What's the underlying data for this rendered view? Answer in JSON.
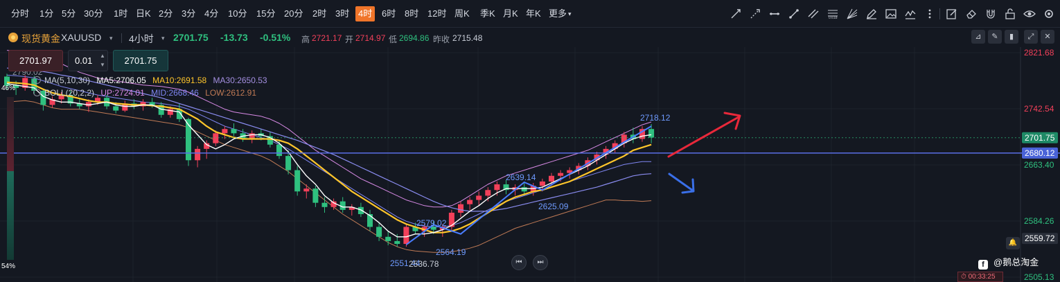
{
  "toolbar": {
    "timeframes": [
      "分时",
      "1分",
      "5分",
      "30分",
      "1时",
      "日K",
      "2分",
      "3分",
      "4分",
      "10分",
      "15分",
      "20分",
      "2时",
      "3时",
      "4时",
      "6时",
      "8时",
      "12时",
      "周K",
      "季K",
      "月K",
      "年K",
      "更多"
    ],
    "active_timeframe": "4时",
    "more_caret": "▾"
  },
  "drawing_tools": [
    "trend-line-icon",
    "ray-line-icon",
    "horizontal-line-icon",
    "segment-icon",
    "parallel-channel-icon",
    "fibonacci-icon",
    "fan-icon",
    "pencil-icon",
    "image-icon",
    "wave-icon",
    "more-dots-icon",
    "edit-icon",
    "eraser-icon",
    "magnet-icon",
    "lock-icon",
    "eye-icon",
    "settings-icon"
  ],
  "symbol": {
    "name_cn": "现货黄金",
    "code": "XAUUSD",
    "caret": "▾",
    "interval": "4小时",
    "price": "2701.75",
    "change": "-13.73",
    "change_pct": "-0.51%",
    "high_label": "高",
    "high": "2721.17",
    "open_label": "开",
    "open": "2714.97",
    "low_label": "低",
    "low": "2694.86",
    "prev_label": "昨收",
    "prev": "2715.48"
  },
  "order": {
    "sell": "2701.97",
    "qty": "0.01",
    "buy": "2701.75"
  },
  "legend": {
    "ma_label": "MA(5,10,30)",
    "ma5": "MA5:2706.05",
    "ma10": "MA10:2691.58",
    "ma30": "MA30:2650.53",
    "boll_label": "BOLL(20,2,2)",
    "up": "UP:2724.01",
    "mid": "MID:2668.46",
    "low": "LOW:2612.91"
  },
  "sentiment": {
    "top": "46%",
    "bottom": "54%"
  },
  "footer": {
    "watermark": "@鹅总淘金",
    "countdown": "00:33:25"
  },
  "colors": {
    "up": "#f2405a",
    "down": "#2fc07f",
    "ma5": "#ffffff",
    "ma10": "#ffc62b",
    "ma30": "#8a8cf0",
    "boll_up": "#d88ae6",
    "boll_mid": "#7f86f2",
    "boll_low": "#c07a55",
    "accent": "#f0752a"
  },
  "chart_data": {
    "type": "candlestick",
    "price_axis": [
      2821.68,
      2742.54,
      2663.4,
      2584.26,
      2505.13
    ],
    "axis_tags": {
      "current": "2701.75",
      "hline": "2680.12",
      "alert": "2559.72"
    },
    "annotations": [
      "2790.02",
      "2718.12",
      "2639.14",
      "2625.09",
      "2579.02",
      "2564.19",
      "2551.44",
      "2536.78"
    ],
    "ohlc": [
      [
        2788,
        2792,
        2770,
        2775
      ],
      [
        2776,
        2782,
        2762,
        2772
      ],
      [
        2772,
        2790,
        2768,
        2786
      ],
      [
        2785,
        2789,
        2764,
        2768
      ],
      [
        2768,
        2771,
        2740,
        2748
      ],
      [
        2748,
        2760,
        2744,
        2756
      ],
      [
        2756,
        2766,
        2750,
        2762
      ],
      [
        2762,
        2768,
        2746,
        2750
      ],
      [
        2750,
        2758,
        2742,
        2746
      ],
      [
        2746,
        2756,
        2738,
        2752
      ],
      [
        2752,
        2762,
        2748,
        2758
      ],
      [
        2758,
        2762,
        2742,
        2746
      ],
      [
        2746,
        2752,
        2736,
        2740
      ],
      [
        2740,
        2754,
        2738,
        2750
      ],
      [
        2750,
        2756,
        2742,
        2746
      ],
      [
        2746,
        2756,
        2740,
        2752
      ],
      [
        2752,
        2758,
        2744,
        2748
      ],
      [
        2748,
        2752,
        2730,
        2734
      ],
      [
        2734,
        2746,
        2730,
        2742
      ],
      [
        2742,
        2750,
        2724,
        2728
      ],
      [
        2728,
        2730,
        2662,
        2670
      ],
      [
        2670,
        2690,
        2660,
        2686
      ],
      [
        2686,
        2698,
        2672,
        2694
      ],
      [
        2694,
        2712,
        2690,
        2708
      ],
      [
        2708,
        2718,
        2700,
        2714
      ],
      [
        2714,
        2722,
        2704,
        2708
      ],
      [
        2708,
        2714,
        2696,
        2700
      ],
      [
        2700,
        2712,
        2694,
        2708
      ],
      [
        2708,
        2714,
        2698,
        2704
      ],
      [
        2704,
        2710,
        2688,
        2692
      ],
      [
        2692,
        2698,
        2672,
        2676
      ],
      [
        2676,
        2684,
        2650,
        2656
      ],
      [
        2656,
        2662,
        2620,
        2626
      ],
      [
        2626,
        2636,
        2616,
        2630
      ],
      [
        2630,
        2634,
        2604,
        2610
      ],
      [
        2610,
        2618,
        2596,
        2604
      ],
      [
        2604,
        2616,
        2600,
        2612
      ],
      [
        2612,
        2618,
        2596,
        2600
      ],
      [
        2600,
        2608,
        2592,
        2604
      ],
      [
        2604,
        2610,
        2590,
        2594
      ],
      [
        2594,
        2600,
        2570,
        2576
      ],
      [
        2576,
        2582,
        2556,
        2562
      ],
      [
        2562,
        2570,
        2550,
        2556
      ],
      [
        2556,
        2566,
        2548,
        2552
      ],
      [
        2552,
        2580,
        2548,
        2576
      ],
      [
        2576,
        2582,
        2566,
        2570
      ],
      [
        2570,
        2580,
        2562,
        2576
      ],
      [
        2576,
        2584,
        2566,
        2572
      ],
      [
        2572,
        2580,
        2562,
        2576
      ],
      [
        2576,
        2600,
        2570,
        2596
      ],
      [
        2596,
        2612,
        2590,
        2608
      ],
      [
        2608,
        2618,
        2600,
        2614
      ],
      [
        2614,
        2626,
        2606,
        2620
      ],
      [
        2620,
        2632,
        2612,
        2628
      ],
      [
        2628,
        2640,
        2620,
        2636
      ],
      [
        2636,
        2642,
        2622,
        2628
      ],
      [
        2628,
        2636,
        2620,
        2632
      ],
      [
        2632,
        2638,
        2620,
        2626
      ],
      [
        2626,
        2638,
        2620,
        2634
      ],
      [
        2634,
        2644,
        2626,
        2640
      ],
      [
        2640,
        2652,
        2634,
        2648
      ],
      [
        2648,
        2656,
        2640,
        2652
      ],
      [
        2652,
        2660,
        2644,
        2656
      ],
      [
        2656,
        2666,
        2650,
        2662
      ],
      [
        2662,
        2674,
        2656,
        2670
      ],
      [
        2670,
        2682,
        2664,
        2678
      ],
      [
        2678,
        2690,
        2672,
        2686
      ],
      [
        2686,
        2698,
        2680,
        2694
      ],
      [
        2694,
        2710,
        2688,
        2706
      ],
      [
        2706,
        2716,
        2694,
        2700
      ],
      [
        2700,
        2718,
        2696,
        2714
      ],
      [
        2714,
        2721,
        2694,
        2702
      ]
    ],
    "ma5": [
      2778,
      2776,
      2774,
      2772,
      2760,
      2755,
      2752,
      2752,
      2750,
      2748,
      2750,
      2752,
      2748,
      2746,
      2746,
      2748,
      2748,
      2742,
      2740,
      2738,
      2720,
      2706,
      2692,
      2686,
      2692,
      2700,
      2704,
      2706,
      2706,
      2702,
      2694,
      2682,
      2664,
      2648,
      2636,
      2620,
      2610,
      2604,
      2604,
      2600,
      2592,
      2582,
      2570,
      2562,
      2562,
      2566,
      2566,
      2568,
      2572,
      2578,
      2588,
      2598,
      2606,
      2616,
      2624,
      2630,
      2630,
      2630,
      2630,
      2632,
      2638,
      2644,
      2650,
      2656,
      2662,
      2670,
      2678,
      2686,
      2694,
      2700,
      2704,
      2706
    ],
    "ma10": [
      2780,
      2779,
      2778,
      2776,
      2770,
      2765,
      2762,
      2760,
      2757,
      2754,
      2752,
      2752,
      2750,
      2749,
      2748,
      2748,
      2747,
      2746,
      2744,
      2742,
      2735,
      2728,
      2718,
      2710,
      2706,
      2702,
      2700,
      2700,
      2700,
      2700,
      2698,
      2694,
      2686,
      2676,
      2666,
      2656,
      2646,
      2636,
      2626,
      2618,
      2610,
      2602,
      2594,
      2586,
      2580,
      2576,
      2572,
      2568,
      2568,
      2570,
      2574,
      2580,
      2588,
      2596,
      2604,
      2612,
      2618,
      2622,
      2626,
      2628,
      2632,
      2636,
      2640,
      2646,
      2652,
      2658,
      2664,
      2670,
      2676,
      2684,
      2688,
      2692
    ],
    "ma30": [
      2800,
      2799,
      2798,
      2797,
      2795,
      2793,
      2790,
      2788,
      2785,
      2782,
      2779,
      2776,
      2773,
      2770,
      2767,
      2764,
      2761,
      2758,
      2754,
      2750,
      2746,
      2742,
      2738,
      2734,
      2730,
      2726,
      2722,
      2718,
      2714,
      2710,
      2706,
      2702,
      2698,
      2693,
      2688,
      2683,
      2678,
      2672,
      2666,
      2660,
      2654,
      2648,
      2642,
      2636,
      2630,
      2624,
      2618,
      2612,
      2607,
      2603,
      2600,
      2598,
      2598,
      2598,
      2600,
      2602,
      2605,
      2608,
      2611,
      2614,
      2617,
      2620,
      2623,
      2626,
      2629,
      2632,
      2636,
      2640,
      2644,
      2648,
      2650,
      2651
    ],
    "boll_up": [
      2825,
      2824,
      2823,
      2822,
      2818,
      2812,
      2806,
      2800,
      2794,
      2790,
      2786,
      2784,
      2782,
      2780,
      2778,
      2776,
      2775,
      2774,
      2772,
      2770,
      2766,
      2760,
      2754,
      2748,
      2742,
      2738,
      2736,
      2734,
      2732,
      2728,
      2722,
      2714,
      2704,
      2694,
      2684,
      2676,
      2668,
      2660,
      2652,
      2644,
      2638,
      2632,
      2626,
      2620,
      2614,
      2610,
      2606,
      2604,
      2604,
      2606,
      2612,
      2620,
      2628,
      2636,
      2642,
      2648,
      2652,
      2656,
      2660,
      2664,
      2668,
      2672,
      2676,
      2680,
      2684,
      2690,
      2696,
      2702,
      2708,
      2714,
      2720,
      2724
    ],
    "boll_mid": [
      2790,
      2789,
      2788,
      2786,
      2782,
      2778,
      2774,
      2771,
      2768,
      2765,
      2762,
      2760,
      2758,
      2756,
      2754,
      2752,
      2751,
      2750,
      2748,
      2746,
      2742,
      2736,
      2730,
      2724,
      2718,
      2714,
      2710,
      2706,
      2702,
      2698,
      2692,
      2686,
      2678,
      2670,
      2662,
      2654,
      2646,
      2638,
      2630,
      2622,
      2614,
      2606,
      2598,
      2590,
      2584,
      2580,
      2577,
      2576,
      2576,
      2578,
      2582,
      2588,
      2594,
      2600,
      2606,
      2612,
      2616,
      2620,
      2624,
      2628,
      2632,
      2636,
      2640,
      2644,
      2648,
      2652,
      2656,
      2660,
      2664,
      2666,
      2668,
      2668
    ],
    "boll_low": [
      2752,
      2753,
      2754,
      2752,
      2748,
      2744,
      2742,
      2742,
      2742,
      2740,
      2738,
      2736,
      2734,
      2732,
      2730,
      2728,
      2726,
      2724,
      2722,
      2720,
      2716,
      2710,
      2704,
      2698,
      2692,
      2688,
      2684,
      2680,
      2676,
      2670,
      2662,
      2654,
      2644,
      2634,
      2624,
      2614,
      2604,
      2594,
      2586,
      2578,
      2570,
      2562,
      2554,
      2548,
      2544,
      2542,
      2541,
      2540,
      2540,
      2541,
      2543,
      2546,
      2550,
      2556,
      2562,
      2568,
      2574,
      2578,
      2582,
      2586,
      2590,
      2594,
      2598,
      2602,
      2606,
      2610,
      2614,
      2614,
      2613,
      2613,
      2612,
      2613
    ]
  }
}
